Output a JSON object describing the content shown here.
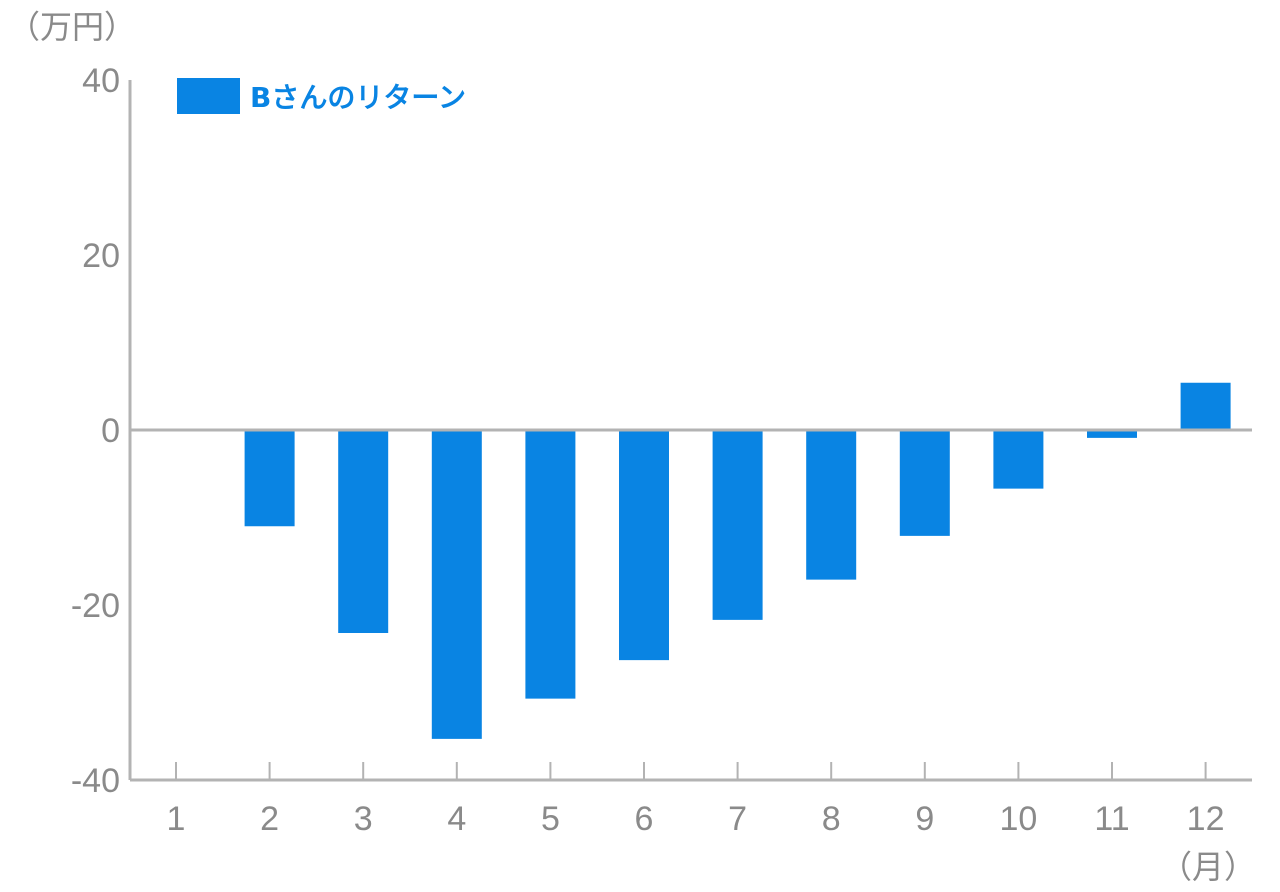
{
  "chart_data": {
    "type": "bar",
    "title": "",
    "xlabel": "（月）",
    "ylabel": "（万円）",
    "categories": [
      "1",
      "2",
      "3",
      "4",
      "5",
      "6",
      "7",
      "8",
      "9",
      "10",
      "11",
      "12"
    ],
    "series": [
      {
        "name": "Bさんのリターン",
        "color": "#0984e3",
        "values": [
          0,
          -11,
          -23.2,
          -35.3,
          -30.7,
          -26.3,
          -21.7,
          -17.1,
          -12.1,
          -6.7,
          -0.9,
          5.4
        ]
      }
    ],
    "ylim": [
      -40,
      40
    ],
    "yticks": [
      "40",
      "20",
      "0",
      "-20",
      "-40"
    ],
    "grid": false,
    "legend": "top-left"
  }
}
